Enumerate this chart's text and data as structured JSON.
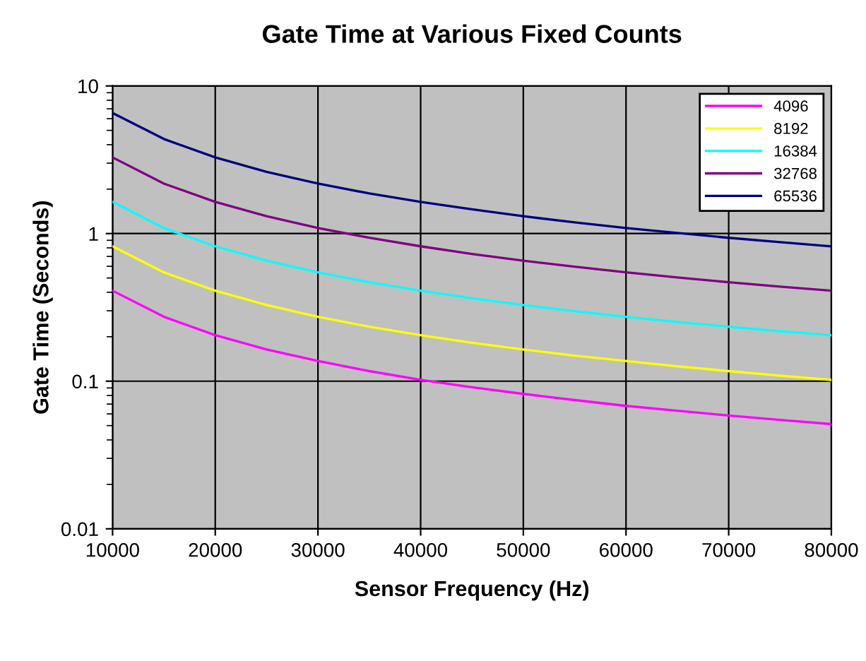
{
  "chart_data": {
    "type": "line",
    "title": "Gate Time at Various Fixed Counts",
    "xlabel": "Sensor Frequency (Hz)",
    "ylabel": "Gate Time (Seconds)",
    "x": [
      10000,
      15000,
      20000,
      25000,
      30000,
      35000,
      40000,
      45000,
      50000,
      55000,
      60000,
      65000,
      70000,
      75000,
      80000
    ],
    "series": [
      {
        "name": "4096",
        "color": "#ff00ff",
        "values": [
          0.41,
          0.273,
          0.205,
          0.164,
          0.137,
          0.117,
          0.102,
          0.091,
          0.082,
          0.0745,
          0.068,
          0.063,
          0.0585,
          0.0546,
          0.0512
        ]
      },
      {
        "name": "8192",
        "color": "#ffff00",
        "values": [
          0.82,
          0.546,
          0.41,
          0.328,
          0.273,
          0.234,
          0.205,
          0.182,
          0.164,
          0.149,
          0.137,
          0.126,
          0.117,
          0.109,
          0.102
        ]
      },
      {
        "name": "16384",
        "color": "#00ffff",
        "values": [
          1.64,
          1.09,
          0.82,
          0.655,
          0.546,
          0.468,
          0.41,
          0.364,
          0.328,
          0.298,
          0.273,
          0.252,
          0.234,
          0.218,
          0.205
        ]
      },
      {
        "name": "32768",
        "color": "#800080",
        "values": [
          3.28,
          2.18,
          1.64,
          1.31,
          1.09,
          0.936,
          0.82,
          0.728,
          0.655,
          0.596,
          0.546,
          0.504,
          0.468,
          0.437,
          0.41
        ]
      },
      {
        "name": "65536",
        "color": "#000080",
        "values": [
          6.55,
          4.37,
          3.28,
          2.62,
          2.18,
          1.87,
          1.64,
          1.46,
          1.31,
          1.19,
          1.09,
          1.01,
          0.936,
          0.874,
          0.819
        ]
      }
    ],
    "log": "y",
    "xlim": [
      10000,
      80000
    ],
    "xticks": [
      10000,
      20000,
      30000,
      40000,
      50000,
      60000,
      70000,
      80000
    ],
    "ylim": [
      0.01,
      10
    ],
    "yticks": [
      0.01,
      0.1,
      1,
      10
    ],
    "grid": true,
    "legend": "top right",
    "marker": "none",
    "line_style": "solid"
  }
}
